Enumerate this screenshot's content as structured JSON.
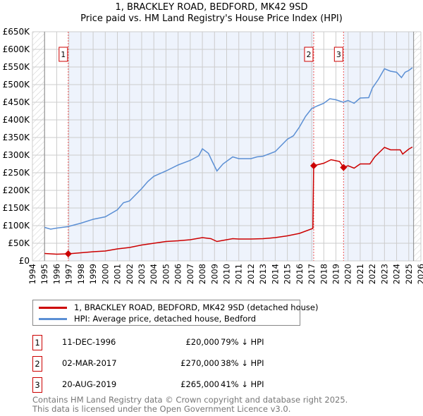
{
  "title": "1, BRACKLEY ROAD, BEDFORD, MK42 9SD",
  "subtitle": "Price paid vs. HM Land Registry's House Price Index (HPI)",
  "colors": {
    "property": "#cc0000",
    "hpi": "#5b8fd4",
    "shade": "#eef3fc"
  },
  "chart_data": {
    "type": "line",
    "title": "1, BRACKLEY ROAD, BEDFORD, MK42 9SD",
    "xlim": [
      1994,
      2026
    ],
    "ylim": [
      0,
      650000
    ],
    "x_ticks": [
      "1994",
      "1995",
      "1996",
      "1997",
      "1998",
      "1999",
      "2000",
      "2001",
      "2002",
      "2003",
      "2004",
      "2005",
      "2006",
      "2007",
      "2008",
      "2009",
      "2010",
      "2011",
      "2012",
      "2013",
      "2014",
      "2015",
      "2016",
      "2017",
      "2018",
      "2019",
      "2020",
      "2021",
      "2022",
      "2023",
      "2024",
      "2025",
      "2026"
    ],
    "y_ticks": [
      {
        "v": 0,
        "l": "£0"
      },
      {
        "v": 50000,
        "l": "£50K"
      },
      {
        "v": 100000,
        "l": "£100K"
      },
      {
        "v": 150000,
        "l": "£150K"
      },
      {
        "v": 200000,
        "l": "£200K"
      },
      {
        "v": 250000,
        "l": "£250K"
      },
      {
        "v": 300000,
        "l": "£300K"
      },
      {
        "v": 350000,
        "l": "£350K"
      },
      {
        "v": 400000,
        "l": "£400K"
      },
      {
        "v": 450000,
        "l": "£450K"
      },
      {
        "v": 500000,
        "l": "£500K"
      },
      {
        "v": 550000,
        "l": "£550K"
      },
      {
        "v": 600000,
        "l": "£600K"
      },
      {
        "v": 650000,
        "l": "£650K"
      }
    ],
    "series": [
      {
        "name": "1, BRACKLEY ROAD, BEDFORD, MK42 9SD (detached house)",
        "color": "#cc0000",
        "points": [
          [
            1995,
            21000
          ],
          [
            1996,
            19000
          ],
          [
            1996.95,
            20000
          ],
          [
            1998,
            23000
          ],
          [
            1999,
            26000
          ],
          [
            2000,
            28000
          ],
          [
            2001,
            34000
          ],
          [
            2002,
            38000
          ],
          [
            2003,
            45000
          ],
          [
            2004,
            50000
          ],
          [
            2005,
            55000
          ],
          [
            2006,
            57000
          ],
          [
            2007,
            60000
          ],
          [
            2008,
            66000
          ],
          [
            2008.7,
            63000
          ],
          [
            2009.2,
            55000
          ],
          [
            2010,
            60000
          ],
          [
            2010.5,
            63000
          ],
          [
            2011,
            62000
          ],
          [
            2012,
            62000
          ],
          [
            2013,
            63000
          ],
          [
            2014,
            66000
          ],
          [
            2015,
            71000
          ],
          [
            2016,
            78000
          ],
          [
            2017.1,
            92000
          ],
          [
            2017.17,
            270000
          ],
          [
            2018,
            277000
          ],
          [
            2018.6,
            287000
          ],
          [
            2019.3,
            282000
          ],
          [
            2019.63,
            265000
          ],
          [
            2020,
            270000
          ],
          [
            2020.5,
            263000
          ],
          [
            2021,
            275000
          ],
          [
            2021.8,
            275000
          ],
          [
            2022.2,
            295000
          ],
          [
            2023,
            322000
          ],
          [
            2023.5,
            315000
          ],
          [
            2024.3,
            315000
          ],
          [
            2024.5,
            303000
          ],
          [
            2025,
            317000
          ],
          [
            2025.3,
            323000
          ]
        ]
      },
      {
        "name": "HPI: Average price, detached house, Bedford",
        "color": "#5b8fd4",
        "points": [
          [
            1995,
            95000
          ],
          [
            1995.5,
            90000
          ],
          [
            1996,
            93000
          ],
          [
            1996.9,
            97000
          ],
          [
            1998,
            107000
          ],
          [
            1999,
            118000
          ],
          [
            2000,
            125000
          ],
          [
            2001,
            145000
          ],
          [
            2001.5,
            165000
          ],
          [
            2002,
            170000
          ],
          [
            2003,
            205000
          ],
          [
            2003.5,
            225000
          ],
          [
            2004,
            240000
          ],
          [
            2005,
            255000
          ],
          [
            2006,
            272000
          ],
          [
            2007,
            285000
          ],
          [
            2007.7,
            298000
          ],
          [
            2008,
            318000
          ],
          [
            2008.5,
            305000
          ],
          [
            2008.8,
            283000
          ],
          [
            2009.2,
            255000
          ],
          [
            2009.7,
            275000
          ],
          [
            2010.5,
            295000
          ],
          [
            2011,
            290000
          ],
          [
            2012,
            290000
          ],
          [
            2012.5,
            295000
          ],
          [
            2013,
            297000
          ],
          [
            2014,
            310000
          ],
          [
            2015,
            345000
          ],
          [
            2015.5,
            355000
          ],
          [
            2016,
            380000
          ],
          [
            2016.5,
            410000
          ],
          [
            2017,
            432000
          ],
          [
            2017.5,
            440000
          ],
          [
            2018,
            447000
          ],
          [
            2018.5,
            460000
          ],
          [
            2019,
            457000
          ],
          [
            2019.6,
            450000
          ],
          [
            2020,
            455000
          ],
          [
            2020.5,
            447000
          ],
          [
            2021,
            462000
          ],
          [
            2021.7,
            463000
          ],
          [
            2022,
            490000
          ],
          [
            2022.5,
            515000
          ],
          [
            2023,
            545000
          ],
          [
            2023.5,
            538000
          ],
          [
            2024,
            535000
          ],
          [
            2024.4,
            520000
          ],
          [
            2024.7,
            535000
          ],
          [
            2025,
            540000
          ],
          [
            2025.3,
            548000
          ]
        ]
      }
    ],
    "sales": [
      {
        "label": "1",
        "x": 1996.95,
        "y": 20000
      },
      {
        "label": "2",
        "x": 2017.17,
        "y": 270000
      },
      {
        "label": "3",
        "x": 2019.63,
        "y": 265000
      }
    ],
    "data_end": 2025.4
  },
  "legend": {
    "property": "1, BRACKLEY ROAD, BEDFORD, MK42 9SD (detached house)",
    "hpi": "HPI: Average price, detached house, Bedford"
  },
  "sales_table": [
    {
      "n": "1",
      "date": "11-DEC-1996",
      "price": "£20,000",
      "delta": "79% ↓ HPI"
    },
    {
      "n": "2",
      "date": "02-MAR-2017",
      "price": "£270,000",
      "delta": "38% ↓ HPI"
    },
    {
      "n": "3",
      "date": "20-AUG-2019",
      "price": "£265,000",
      "delta": "41% ↓ HPI"
    }
  ],
  "footer": {
    "line1": "Contains HM Land Registry data © Crown copyright and database right 2025.",
    "line2": "This data is licensed under the Open Government Licence v3.0."
  }
}
